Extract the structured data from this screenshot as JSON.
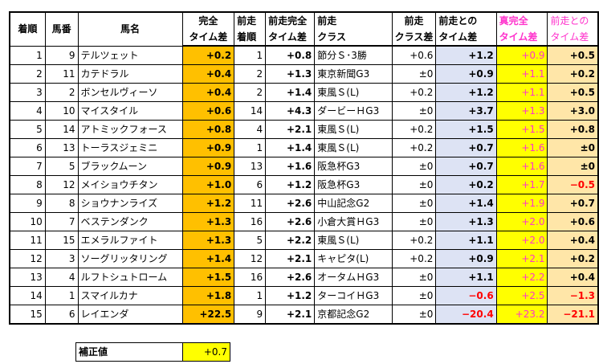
{
  "headers": {
    "finish": "着順",
    "post": "馬番",
    "horse": "馬名",
    "perfect_time_diff": [
      "完全",
      "タイム差"
    ],
    "prev_perfect_time_diff": [
      "前走完全",
      "タイム差"
    ],
    "prev_finish": [
      "前走",
      "着順"
    ],
    "prev_class": [
      "前走",
      "クラス"
    ],
    "class_diff": [
      "前走",
      "クラス差"
    ],
    "time_diff_vs_prev": [
      "前走との",
      "タイム差"
    ],
    "true_perfect_time_diff": [
      "真完全",
      "タイム差"
    ],
    "vs_prev_time_diff": [
      "前走との",
      "タイム差"
    ]
  },
  "rows": [
    {
      "finish": "1",
      "post": "9",
      "name": "テルツェット",
      "perfect": "+0.2",
      "prev_finish": "1",
      "prev_perfect": "+0.8",
      "prev_class": "節分Ｓ･3勝",
      "class_diff": "+0.6",
      "time_diff": "+1.2",
      "true_perfect": "+0.9",
      "vs_prev": "+0.5"
    },
    {
      "finish": "2",
      "post": "11",
      "name": "カテドラル",
      "perfect": "+0.4",
      "prev_finish": "2",
      "prev_perfect": "+1.3",
      "prev_class": "東京新聞G3",
      "class_diff": "±0",
      "time_diff": "+0.9",
      "true_perfect": "+1.1",
      "vs_prev": "+0.2"
    },
    {
      "finish": "3",
      "post": "2",
      "name": "ボンセルヴィーソ",
      "perfect": "+0.4",
      "prev_finish": "2",
      "prev_perfect": "+1.4",
      "prev_class": "東風Ｓ(L)",
      "class_diff": "+0.2",
      "time_diff": "+1.2",
      "true_perfect": "+1.1",
      "vs_prev": "+0.5"
    },
    {
      "finish": "4",
      "post": "10",
      "name": "マイスタイル",
      "perfect": "+0.6",
      "prev_finish": "14",
      "prev_perfect": "+4.3",
      "prev_class": "ダービーＨG3",
      "class_diff": "±0",
      "time_diff": "+3.7",
      "true_perfect": "+1.3",
      "vs_prev": "+3.0"
    },
    {
      "finish": "5",
      "post": "14",
      "name": "アトミックフォース",
      "perfect": "+0.8",
      "prev_finish": "4",
      "prev_perfect": "+2.1",
      "prev_class": "東風Ｓ(L)",
      "class_diff": "+0.2",
      "time_diff": "+1.5",
      "true_perfect": "+1.5",
      "vs_prev": "+0.8"
    },
    {
      "finish": "6",
      "post": "13",
      "name": "トーラスジェミニ",
      "perfect": "+0.9",
      "prev_finish": "1",
      "prev_perfect": "+1.4",
      "prev_class": "東風Ｓ(L)",
      "class_diff": "+0.2",
      "time_diff": "+0.7",
      "true_perfect": "+1.6",
      "vs_prev": "±0"
    },
    {
      "finish": "7",
      "post": "5",
      "name": "ブラックムーン",
      "perfect": "+0.9",
      "prev_finish": "13",
      "prev_perfect": "+1.6",
      "prev_class": "阪急杯G3",
      "class_diff": "±0",
      "time_diff": "+0.7",
      "true_perfect": "+1.6",
      "vs_prev": "±0"
    },
    {
      "finish": "8",
      "post": "12",
      "name": "メイショウチタン",
      "perfect": "+1.0",
      "prev_finish": "6",
      "prev_perfect": "+1.2",
      "prev_class": "阪急杯G3",
      "class_diff": "±0",
      "time_diff": "+0.2",
      "true_perfect": "+1.7",
      "vs_prev": "−0.5"
    },
    {
      "finish": "9",
      "post": "8",
      "name": "ショウナンライズ",
      "perfect": "+1.2",
      "prev_finish": "11",
      "prev_perfect": "+2.6",
      "prev_class": "中山記念G2",
      "class_diff": "±0",
      "time_diff": "+1.4",
      "true_perfect": "+1.9",
      "vs_prev": "+0.7"
    },
    {
      "finish": "10",
      "post": "7",
      "name": "ベステンダンク",
      "perfect": "+1.3",
      "prev_finish": "16",
      "prev_perfect": "+2.6",
      "prev_class": "小倉大賞ＨG3",
      "class_diff": "±0",
      "time_diff": "+1.3",
      "true_perfect": "+2.0",
      "vs_prev": "+0.6"
    },
    {
      "finish": "11",
      "post": "15",
      "name": "エメラルファイト",
      "perfect": "+1.3",
      "prev_finish": "5",
      "prev_perfect": "+2.2",
      "prev_class": "東風Ｓ(L)",
      "class_diff": "+0.2",
      "time_diff": "+1.1",
      "true_perfect": "+2.0",
      "vs_prev": "+0.4"
    },
    {
      "finish": "12",
      "post": "3",
      "name": "ソーグリッタリング",
      "perfect": "+1.4",
      "prev_finish": "12",
      "prev_perfect": "+2.1",
      "prev_class": "キャピタ(L)",
      "class_diff": "+0.2",
      "time_diff": "+0.9",
      "true_perfect": "+2.1",
      "vs_prev": "+0.2"
    },
    {
      "finish": "13",
      "post": "4",
      "name": "ルフトシュトローム",
      "perfect": "+1.5",
      "prev_finish": "16",
      "prev_perfect": "+2.6",
      "prev_class": "オータムＨG3",
      "class_diff": "±0",
      "time_diff": "+1.1",
      "true_perfect": "+2.2",
      "vs_prev": "+0.4"
    },
    {
      "finish": "14",
      "post": "1",
      "name": "スマイルカナ",
      "perfect": "+1.8",
      "prev_finish": "1",
      "prev_perfect": "+1.2",
      "prev_class": "ターコイＨG3",
      "class_diff": "±0",
      "time_diff": "−0.6",
      "true_perfect": "+2.5",
      "vs_prev": "−1.3"
    },
    {
      "finish": "15",
      "post": "6",
      "name": "レイエンダ",
      "perfect": "+22.5",
      "prev_finish": "9",
      "prev_perfect": "+2.1",
      "prev_class": "京都記念G2",
      "class_diff": "±0",
      "time_diff": "−20.4",
      "true_perfect": "+23.2",
      "vs_prev": "−21.1"
    }
  ],
  "correction": {
    "label": "補正値",
    "value": "+0.7"
  },
  "colors": {
    "orange": "#ffc000",
    "lavender": "#dde3f4",
    "yellow": "#ffff00",
    "peach": "#ffe6a8",
    "magenta": "#ff33cc",
    "red": "#ff0000"
  }
}
